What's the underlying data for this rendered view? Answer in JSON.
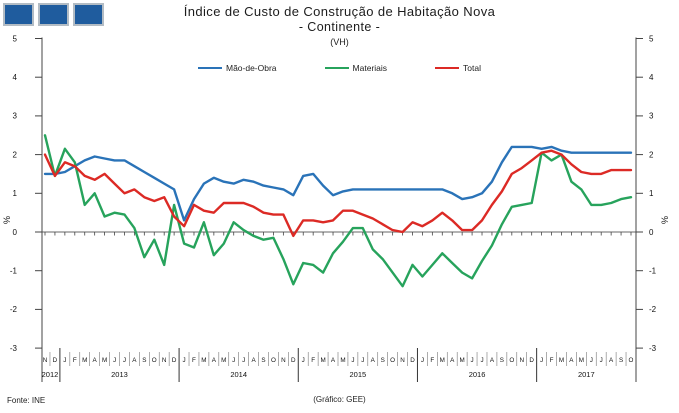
{
  "logo": {
    "square_count": 3,
    "fill": "#1f5c9e",
    "border": "#b3bcc4"
  },
  "title": {
    "line1": "Índice de Custo de Construção de Habitação Nova",
    "line2": "- Continente -",
    "line3": "(VH)"
  },
  "footer": {
    "source": "Fonte: INE",
    "credit": "(Gráfico:  GEE)"
  },
  "chart_data": {
    "type": "line",
    "title": "Índice de Custo de Construção de Habitação Nova - Continente - (VH)",
    "ylabel_left": "%",
    "ylabel_right": "%",
    "ylim": [
      -3,
      5
    ],
    "yticks": [
      5,
      4,
      3,
      2,
      1,
      0,
      -1,
      -2,
      -3
    ],
    "grid": false,
    "legend_position": "top-center",
    "x_months": [
      "N",
      "D",
      "J",
      "F",
      "M",
      "A",
      "M",
      "J",
      "J",
      "A",
      "S",
      "O",
      "N",
      "D",
      "J",
      "F",
      "M",
      "A",
      "M",
      "J",
      "J",
      "A",
      "S",
      "O",
      "N",
      "D",
      "J",
      "F",
      "M",
      "A",
      "M",
      "J",
      "J",
      "A",
      "S",
      "O",
      "N",
      "D",
      "J",
      "F",
      "M",
      "A",
      "M",
      "J",
      "J",
      "A",
      "S",
      "O",
      "N",
      "D",
      "J",
      "F",
      "M",
      "A",
      "M",
      "J",
      "J",
      "A",
      "S",
      "O"
    ],
    "x_years": [
      {
        "label": "2012",
        "from": 0,
        "to": 1
      },
      {
        "label": "2013",
        "from": 2,
        "to": 13
      },
      {
        "label": "2014",
        "from": 14,
        "to": 25
      },
      {
        "label": "2015",
        "from": 26,
        "to": 37
      },
      {
        "label": "2016",
        "from": 38,
        "to": 49
      },
      {
        "label": "2017",
        "from": 50,
        "to": 59
      }
    ],
    "series": [
      {
        "name": "Mão-de-Obra",
        "color": "#2a73b8",
        "values": [
          1.5,
          1.5,
          1.55,
          1.7,
          1.85,
          1.95,
          1.9,
          1.85,
          1.85,
          1.7,
          1.55,
          1.4,
          1.25,
          1.1,
          0.3,
          0.85,
          1.25,
          1.4,
          1.3,
          1.25,
          1.35,
          1.3,
          1.2,
          1.15,
          1.1,
          0.95,
          1.45,
          1.5,
          1.2,
          0.95,
          1.05,
          1.1,
          1.1,
          1.1,
          1.1,
          1.1,
          1.1,
          1.1,
          1.1,
          1.1,
          1.1,
          1.0,
          0.85,
          0.9,
          1.0,
          1.3,
          1.8,
          2.2,
          2.2,
          2.2,
          2.15,
          2.2,
          2.1,
          2.05,
          2.05,
          2.05,
          2.05,
          2.05,
          2.05,
          2.05
        ]
      },
      {
        "name": "Materiais",
        "color": "#27a35c",
        "values": [
          2.5,
          1.45,
          2.15,
          1.8,
          0.7,
          1.0,
          0.4,
          0.5,
          0.45,
          0.1,
          -0.65,
          -0.2,
          -0.85,
          0.7,
          -0.3,
          -0.4,
          0.25,
          -0.6,
          -0.3,
          0.25,
          0.05,
          -0.1,
          -0.2,
          -0.15,
          -0.7,
          -1.35,
          -0.8,
          -0.85,
          -1.05,
          -0.55,
          -0.25,
          0.1,
          0.1,
          -0.45,
          -0.7,
          -1.05,
          -1.4,
          -0.85,
          -1.15,
          -0.85,
          -0.55,
          -0.8,
          -1.05,
          -1.2,
          -0.75,
          -0.35,
          0.2,
          0.65,
          0.7,
          0.75,
          2.05,
          1.85,
          2.0,
          1.3,
          1.1,
          0.7,
          0.7,
          0.75,
          0.85,
          0.9
        ]
      },
      {
        "name": "Total",
        "color": "#dc2a25",
        "values": [
          2.0,
          1.45,
          1.8,
          1.7,
          1.45,
          1.35,
          1.5,
          1.25,
          1.0,
          1.1,
          0.9,
          0.8,
          0.9,
          0.4,
          0.15,
          0.7,
          0.55,
          0.5,
          0.75,
          0.75,
          0.75,
          0.65,
          0.5,
          0.45,
          0.45,
          -0.1,
          0.3,
          0.3,
          0.25,
          0.3,
          0.55,
          0.55,
          0.45,
          0.35,
          0.2,
          0.05,
          0.0,
          0.25,
          0.15,
          0.3,
          0.5,
          0.3,
          0.05,
          0.05,
          0.3,
          0.7,
          1.05,
          1.5,
          1.65,
          1.85,
          2.05,
          2.1,
          2.0,
          1.75,
          1.55,
          1.5,
          1.5,
          1.6,
          1.6,
          1.6
        ]
      }
    ]
  }
}
